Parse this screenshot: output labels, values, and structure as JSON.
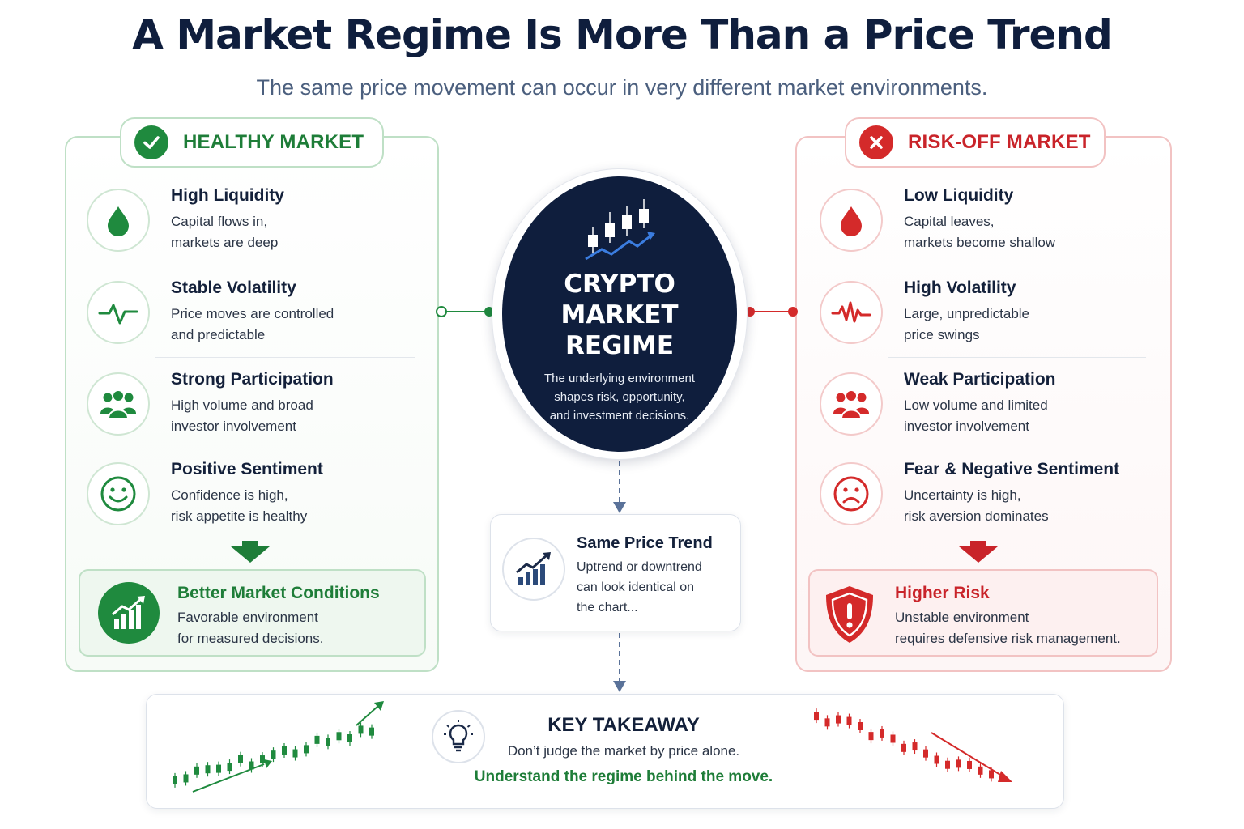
{
  "title": "A Market Regime Is More Than a Price Trend",
  "subtitle": "The same price movement can occur in very different market environments.",
  "colors": {
    "green": "#1f8a3e",
    "red": "#d42a2a",
    "navy": "#0f1e3d",
    "blue_accent": "#3b7de0"
  },
  "healthy": {
    "label": "HEALTHY MARKET",
    "badge_icon": "check-icon",
    "items": [
      {
        "icon": "droplet-icon",
        "title": "High Liquidity",
        "line1": "Capital flows in,",
        "line2": "markets are deep"
      },
      {
        "icon": "pulse-icon",
        "title": "Stable Volatility",
        "line1": "Price moves are controlled",
        "line2": "and predictable"
      },
      {
        "icon": "people-icon",
        "title": "Strong Participation",
        "line1": "High volume and broad",
        "line2": "investor involvement"
      },
      {
        "icon": "smile-icon",
        "title": "Positive Sentiment",
        "line1": "Confidence is high,",
        "line2": "risk appetite is healthy"
      }
    ],
    "result": {
      "icon": "growth-chart-icon",
      "title": "Better Market Conditions",
      "line1": "Favorable environment",
      "line2": "for measured decisions."
    }
  },
  "riskoff": {
    "label": "RISK-OFF MARKET",
    "badge_icon": "x-icon",
    "items": [
      {
        "icon": "droplet-icon",
        "title": "Low Liquidity",
        "line1": "Capital leaves,",
        "line2": "markets become shallow"
      },
      {
        "icon": "pulse-icon",
        "title": "High Volatility",
        "line1": "Large, unpredictable",
        "line2": "price swings"
      },
      {
        "icon": "people-icon",
        "title": "Weak Participation",
        "line1": "Low volume and limited",
        "line2": "investor involvement"
      },
      {
        "icon": "sad-face-icon",
        "title": "Fear & Negative Sentiment",
        "line1": "Uncertainty is high,",
        "line2": "risk aversion dominates"
      }
    ],
    "result": {
      "icon": "shield-alert-icon",
      "title": "Higher Risk",
      "line1": "Unstable environment",
      "line2": "requires defensive risk management."
    }
  },
  "center": {
    "icon": "candlestick-chart-icon",
    "title_line1": "CRYPTO",
    "title_line2": "MARKET",
    "title_line3": "REGIME",
    "desc_line1": "The underlying environment",
    "desc_line2": "shapes risk, opportunity,",
    "desc_line3": "and investment decisions."
  },
  "trend": {
    "icon": "bar-trend-icon",
    "title": "Same Price Trend",
    "line1": "Uptrend or downtrend",
    "line2": "can look identical on",
    "line3": "the chart..."
  },
  "takeaway": {
    "icon": "lightbulb-icon",
    "title": "KEY TAKEAWAY",
    "line1": "Don’t judge the market by price alone.",
    "line2": "Understand the regime behind the move."
  }
}
